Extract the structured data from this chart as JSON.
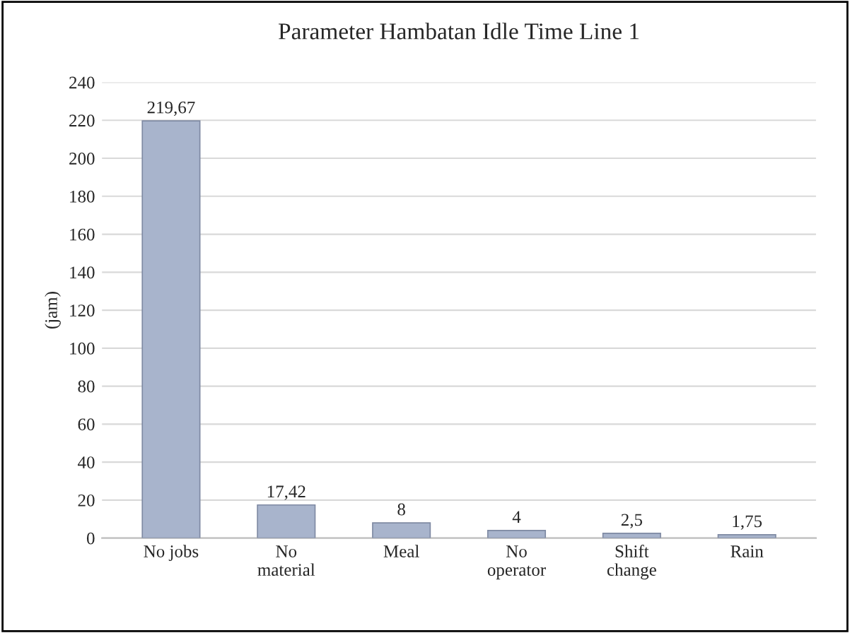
{
  "chart_data": {
    "type": "bar",
    "title": "Parameter Hambatan Idle Time Line 1",
    "ylabel": "(jam)",
    "categories": [
      "No jobs",
      "No\nmaterial",
      "Meal",
      "No\noperator",
      "Shift\nchange",
      "Rain"
    ],
    "values": [
      219.67,
      17.42,
      8,
      4,
      2.5,
      1.75
    ],
    "value_labels": [
      "219,67",
      "17,42",
      "8",
      "4",
      "2,5",
      "1,75"
    ],
    "color": "#a8b4cc",
    "ylim": [
      0,
      240
    ],
    "yticks": [
      0,
      20,
      40,
      60,
      80,
      100,
      120,
      140,
      160,
      180,
      200,
      220,
      240
    ],
    "grid": "y"
  }
}
